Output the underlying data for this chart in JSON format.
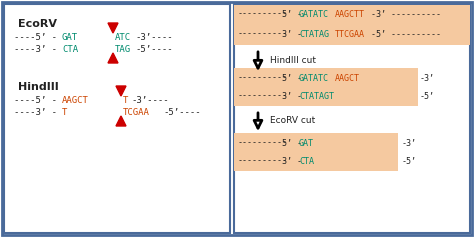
{
  "bg_color": "#ffffff",
  "panel_bg": "#f5c9a0",
  "border_color": "#4a6a9a",
  "arrow_color": "#cc0000",
  "green_color": "#008b6e",
  "orange_color": "#cc4400",
  "dark_color": "#222222",
  "black_color": "#000000",
  "left": {
    "ecorv_label": "EcoRV",
    "ecorv_y1_black": "----5’ -",
    "ecorv_y1_green": "GAT",
    "ecorv_y1_black2": " ",
    "ecorv_y1_green2": "ATC",
    "ecorv_y1_black3": "-3’----",
    "ecorv_y2_black": "----3’ -",
    "ecorv_y2_green": "CTA",
    "ecorv_y2_black2": " ",
    "ecorv_y2_green2": "TAG",
    "ecorv_y2_black3": "-5’----",
    "hindiii_label": "HindIII",
    "hind_y1_black": "----5’ -",
    "hind_y1_orange": "AAGCT",
    "hind_y1_orange2": "T",
    "hind_y1_black3": "-3’----",
    "hind_y2_black": "----3’ -",
    "hind_y2_orange": "T",
    "hind_y2_orange2": "TCGAA",
    "hind_y2_black3": "-5’----"
  },
  "right": {
    "b1l1_dots1": "---------- 5’ -",
    "b1l1_green": "GATATC",
    "b1l1_orange": "AAGCTT",
    "b1l1_dots2": "-3’ ----------",
    "b1l2_dots1": "---------- 3’ -",
    "b1l2_green": "CTATAG",
    "b1l2_orange": "TTCGAA",
    "b1l2_dots2": "-5’ ----------",
    "arrow1": "HindIII cut",
    "b2l1_dots1": "---------- 5’ -",
    "b2l1_green": "GATATC",
    "b2l1_orange": "AAGCT",
    "b2l1_end": "  -3’",
    "b2l2_dots1": "---------- 3’ -",
    "b2l2_green": "CTATAGT",
    "b2l2_end": "     -5’",
    "arrow2": "EcoRV cut",
    "b3l1_dots1": "---------- 5’ -",
    "b3l1_green": "GAT",
    "b3l1_end": "       -3’",
    "b3l2_dots1": "---------- 3’ -",
    "b3l2_green": "CTA",
    "b3l2_end": "       -5’"
  }
}
